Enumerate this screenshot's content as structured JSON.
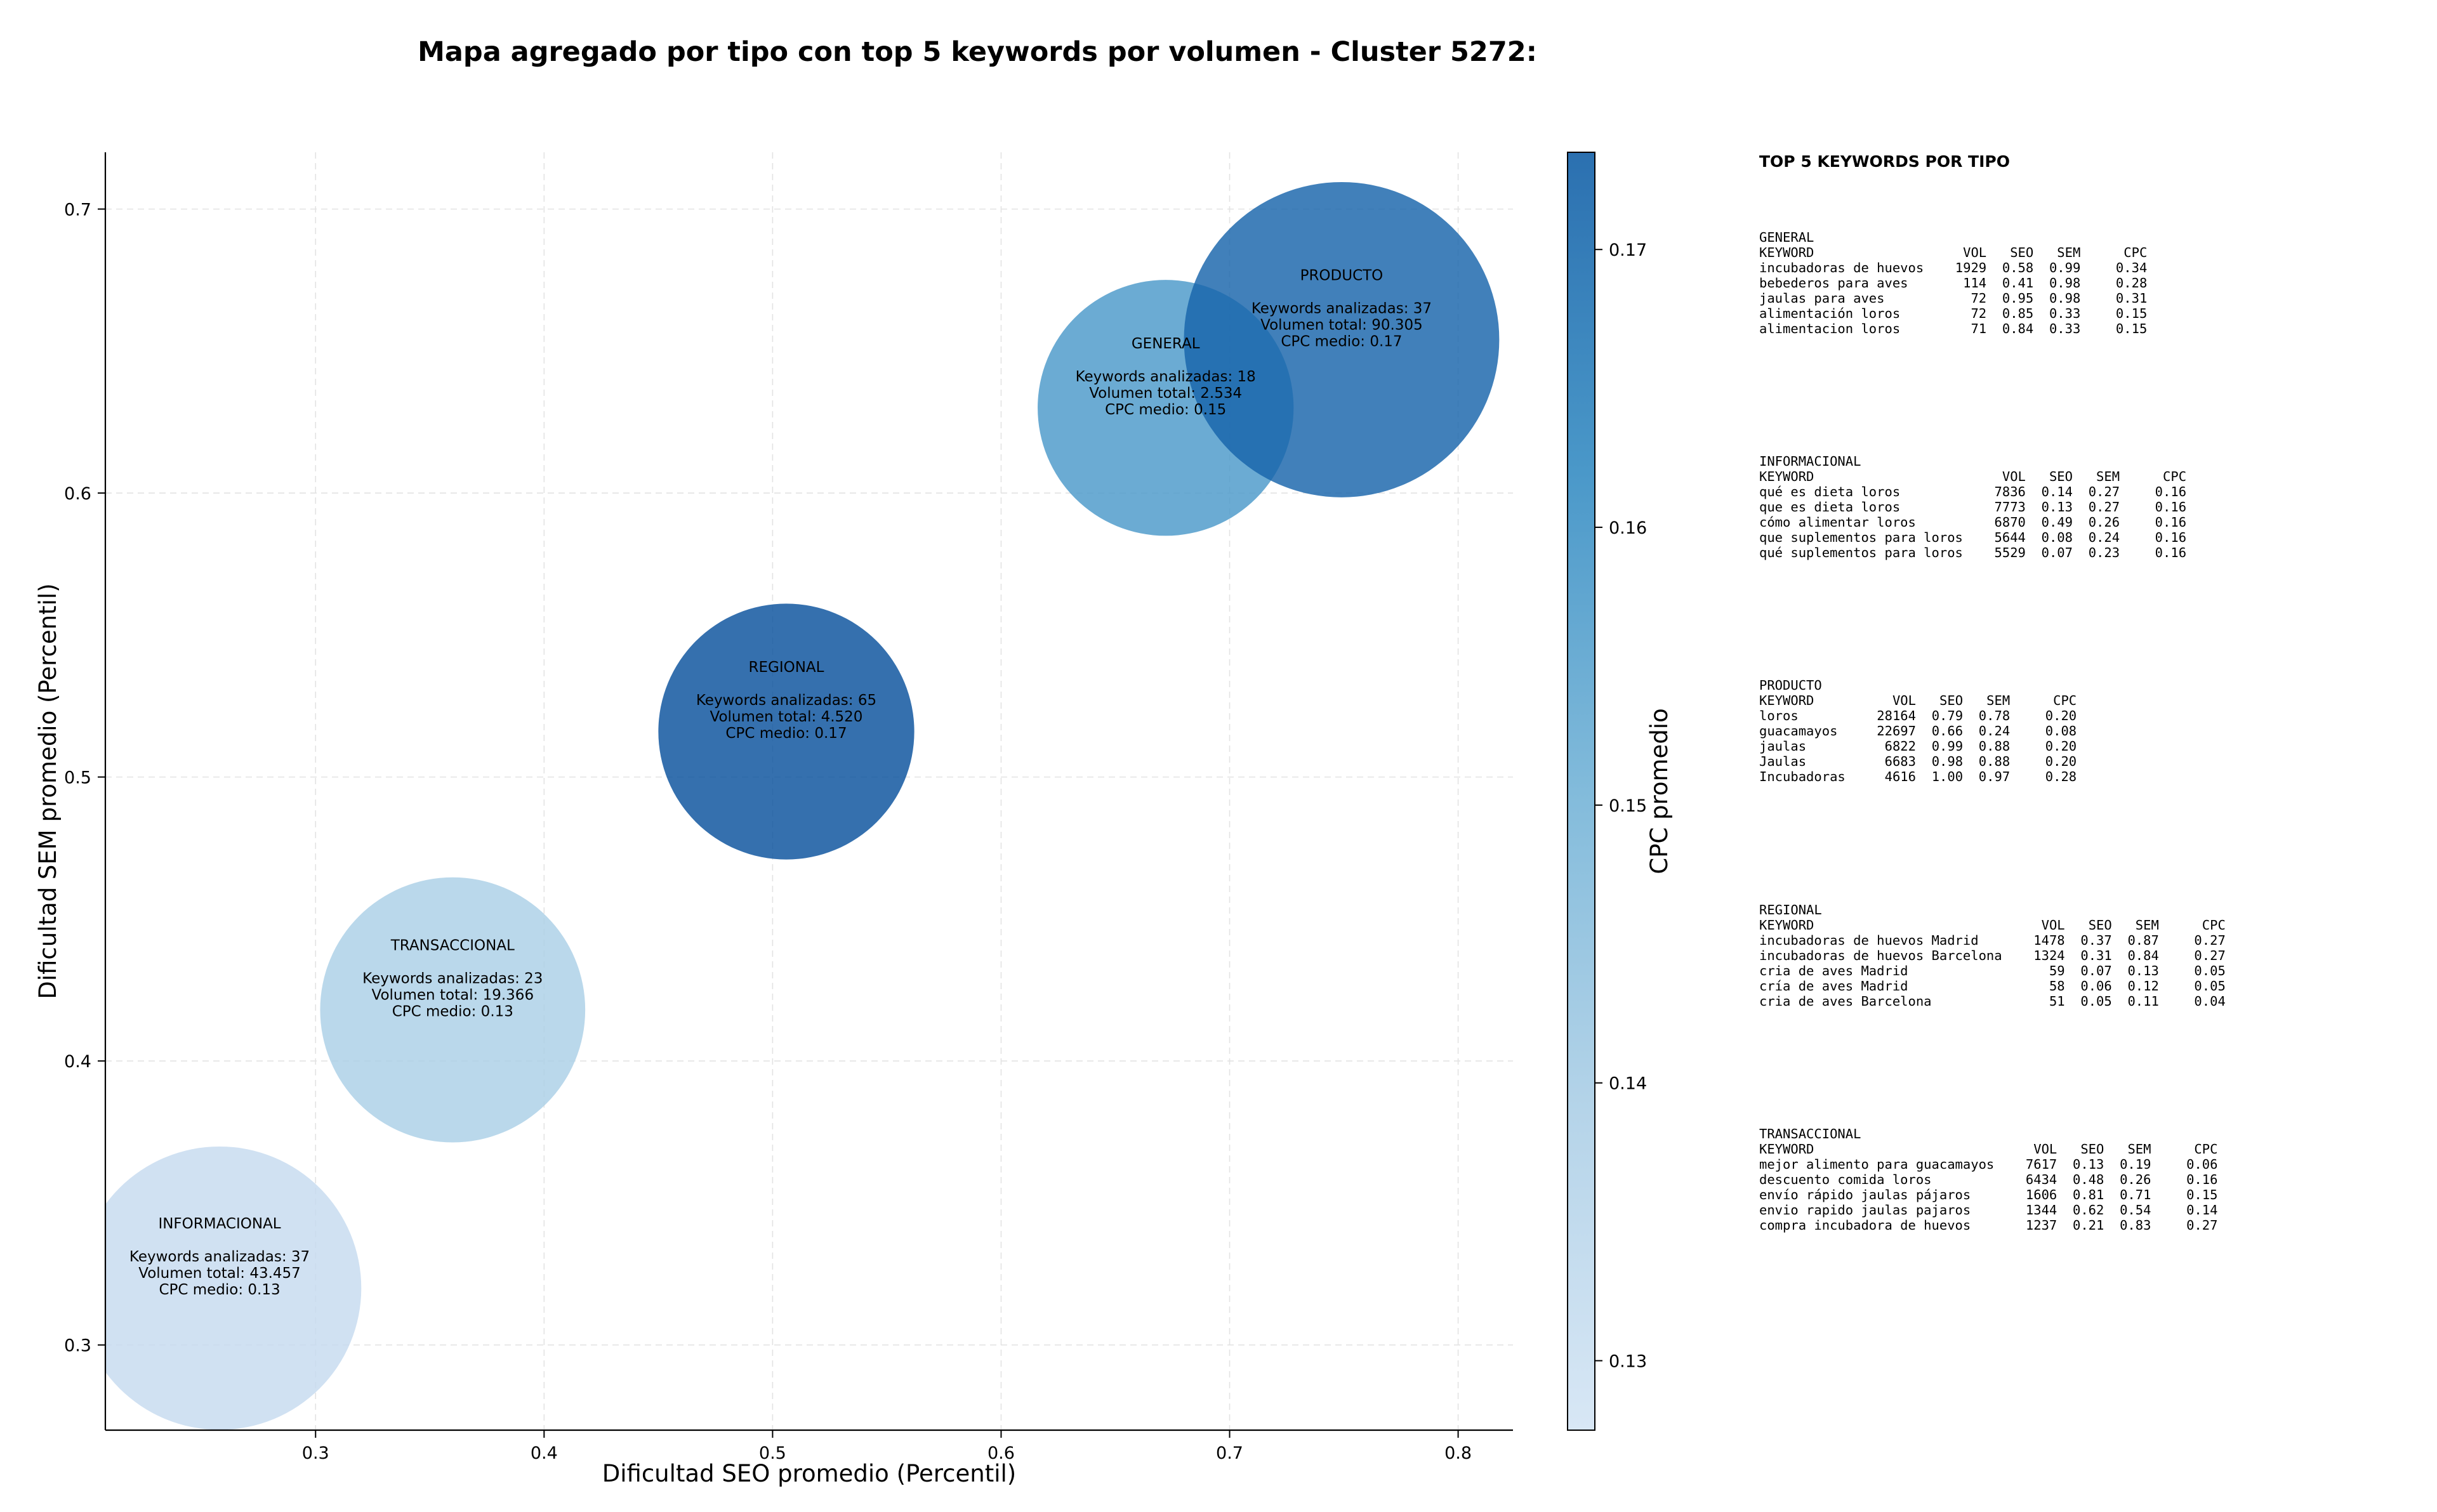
{
  "chart_data": {
    "type": "scatter",
    "title": "Mapa agregado por tipo con top 5 keywords por volumen - Cluster 5272:",
    "xlabel": "Dificultad SEO promedio (Percentil)",
    "ylabel": "Dificultad SEM promedio (Percentil)",
    "colorbar_label": "CPC promedio",
    "xlim": [
      0.208,
      0.824
    ],
    "ylim": [
      0.27,
      0.72
    ],
    "xticks": [
      0.3,
      0.4,
      0.5,
      0.6,
      0.7,
      0.8
    ],
    "xtick_labels": [
      "0.3",
      "0.4",
      "0.5",
      "0.6",
      "0.7",
      "0.8"
    ],
    "yticks": [
      0.3,
      0.4,
      0.5,
      0.6,
      0.7
    ],
    "ytick_labels": [
      "0.3",
      "0.4",
      "0.5",
      "0.6",
      "0.7"
    ],
    "colorbar_range": [
      0.1275,
      0.1735
    ],
    "colorbar_ticks": [
      0.13,
      0.14,
      0.15,
      0.16,
      0.17
    ],
    "colorbar_tick_labels": [
      "0.13",
      "0.14",
      "0.15",
      "0.16",
      "0.17"
    ],
    "grid": true,
    "colormap": "Blues",
    "bubbles": [
      {
        "tipo": "INFORMACIONAL",
        "x": 0.258,
        "y": 0.32,
        "keywords": 37,
        "volumen": 43457,
        "cpc": 0.13,
        "radius_x": 0.062,
        "color": "#c6dbef",
        "lines": [
          "INFORMACIONAL",
          "",
          "Keywords analizadas: 37",
          "Volumen total: 43.457",
          "CPC medio: 0.13"
        ]
      },
      {
        "tipo": "TRANSACCIONAL",
        "x": 0.36,
        "y": 0.418,
        "keywords": 23,
        "volumen": 19366,
        "cpc": 0.13,
        "radius_x": 0.058,
        "color": "#abcfe6",
        "lines": [
          "TRANSACCIONAL",
          "",
          "Keywords analizadas: 23",
          "Volumen total: 19.366",
          "CPC medio: 0.13"
        ]
      },
      {
        "tipo": "REGIONAL",
        "x": 0.506,
        "y": 0.516,
        "keywords": 65,
        "volumen": 4520,
        "cpc": 0.17,
        "radius_x": 0.056,
        "color": "#08519c",
        "lines": [
          "REGIONAL",
          "",
          "Keywords analizadas: 65",
          "Volumen total: 4.520",
          "CPC medio: 0.17"
        ]
      },
      {
        "tipo": "GENERAL",
        "x": 0.672,
        "y": 0.63,
        "keywords": 18,
        "volumen": 2534,
        "cpc": 0.15,
        "radius_x": 0.056,
        "color": "#4a98c9",
        "lines": [
          "GENERAL",
          "",
          "Keywords analizadas: 18",
          "Volumen total: 2.534",
          "CPC medio: 0.15"
        ]
      },
      {
        "tipo": "PRODUCTO",
        "x": 0.749,
        "y": 0.654,
        "keywords": 37,
        "volumen": 90305,
        "cpc": 0.17,
        "radius_x": 0.069,
        "color": "#1764ab",
        "lines": [
          "PRODUCTO",
          "",
          "Keywords analizadas: 37",
          "Volumen total: 90.305",
          "CPC medio: 0.17"
        ]
      }
    ]
  },
  "panel": {
    "title": "TOP 5 KEYWORDS POR TIPO",
    "groups": [
      {
        "name": "GENERAL",
        "kw_width": 17,
        "header": [
          "KEYWORD",
          "VOL",
          "SEO",
          "SEM",
          "CPC"
        ],
        "rows": [
          [
            "incubadoras de huevos",
            "1929",
            "0.58",
            "0.99",
            "0.34"
          ],
          [
            "bebederos para aves",
            "114",
            "0.41",
            "0.98",
            "0.28"
          ],
          [
            "jaulas para aves",
            "72",
            "0.95",
            "0.98",
            "0.31"
          ],
          [
            "alimentación loros",
            "72",
            "0.85",
            "0.33",
            "0.15"
          ],
          [
            "alimentacion loros",
            "71",
            "0.84",
            "0.33",
            "0.15"
          ]
        ]
      },
      {
        "name": "INFORMACIONAL",
        "kw_width": 22,
        "header": [
          "KEYWORD",
          "VOL",
          "SEO",
          "SEM",
          "CPC"
        ],
        "rows": [
          [
            "qué es dieta loros",
            "7836",
            "0.14",
            "0.27",
            "0.16"
          ],
          [
            "que es dieta loros",
            "7773",
            "0.13",
            "0.27",
            "0.16"
          ],
          [
            "cómo alimentar loros",
            "6870",
            "0.49",
            "0.26",
            "0.16"
          ],
          [
            "que suplementos para loros",
            "5644",
            "0.08",
            "0.24",
            "0.16"
          ],
          [
            "qué suplementos para loros",
            "5529",
            "0.07",
            "0.23",
            "0.16"
          ]
        ]
      },
      {
        "name": "PRODUCTO",
        "kw_width": 8,
        "header": [
          "KEYWORD",
          "VOL",
          "SEO",
          "SEM",
          "CPC"
        ],
        "rows": [
          [
            "loros",
            "28164",
            "0.79",
            "0.78",
            "0.20"
          ],
          [
            "guacamayos",
            "22697",
            "0.66",
            "0.24",
            "0.08"
          ],
          [
            "jaulas",
            "6822",
            "0.99",
            "0.88",
            "0.20"
          ],
          [
            "Jaulas",
            "6683",
            "0.98",
            "0.88",
            "0.20"
          ],
          [
            "Incubadoras",
            "4616",
            "1.00",
            "0.97",
            "0.28"
          ]
        ]
      },
      {
        "name": "REGIONAL",
        "kw_width": 27,
        "header": [
          "KEYWORD",
          "VOL",
          "SEO",
          "SEM",
          "CPC"
        ],
        "rows": [
          [
            "incubadoras de huevos Madrid",
            "1478",
            "0.37",
            "0.87",
            "0.27"
          ],
          [
            "incubadoras de huevos Barcelona",
            "1324",
            "0.31",
            "0.84",
            "0.27"
          ],
          [
            "cria de aves Madrid",
            "59",
            "0.07",
            "0.13",
            "0.05"
          ],
          [
            "cría de aves Madrid",
            "58",
            "0.06",
            "0.12",
            "0.05"
          ],
          [
            "cria de aves Barcelona",
            "51",
            "0.05",
            "0.11",
            "0.04"
          ]
        ]
      },
      {
        "name": "TRANSACCIONAL",
        "kw_width": 26,
        "header": [
          "KEYWORD",
          "VOL",
          "SEO",
          "SEM",
          "CPC"
        ],
        "rows": [
          [
            "mejor alimento para guacamayos",
            "7617",
            "0.13",
            "0.19",
            "0.06"
          ],
          [
            "descuento comida loros",
            "6434",
            "0.48",
            "0.26",
            "0.16"
          ],
          [
            "envío rápido jaulas pájaros",
            "1606",
            "0.81",
            "0.71",
            "0.15"
          ],
          [
            "envio rapido jaulas pajaros",
            "1344",
            "0.62",
            "0.54",
            "0.14"
          ],
          [
            "compra incubadora de huevos",
            "1237",
            "0.21",
            "0.83",
            "0.27"
          ]
        ]
      }
    ]
  }
}
